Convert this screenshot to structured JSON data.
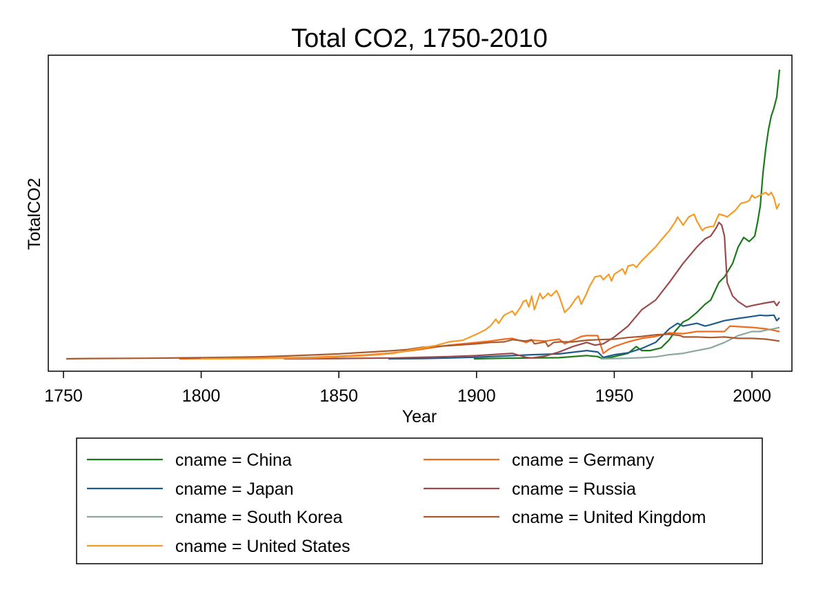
{
  "chart_data": {
    "type": "line",
    "title": "Total CO2, 1750-2010",
    "xlabel": "Year",
    "ylabel": "TotalCO2",
    "xlim": [
      1740,
      2015
    ],
    "ylim": [
      -50,
      1100
    ],
    "x_ticks": [
      1750,
      1800,
      1850,
      1900,
      1950,
      2000
    ],
    "y_ticks_shown": false,
    "grid": false,
    "legend_position": "bottom",
    "series": [
      {
        "name": "cname = China",
        "color": "#1a7a1a",
        "points": [
          [
            1899,
            0
          ],
          [
            1910,
            2
          ],
          [
            1920,
            3
          ],
          [
            1930,
            4
          ],
          [
            1940,
            12
          ],
          [
            1944,
            8
          ],
          [
            1946,
            0
          ],
          [
            1950,
            8
          ],
          [
            1955,
            20
          ],
          [
            1958,
            45
          ],
          [
            1960,
            30
          ],
          [
            1963,
            30
          ],
          [
            1967,
            40
          ],
          [
            1970,
            70
          ],
          [
            1972,
            100
          ],
          [
            1975,
            135
          ],
          [
            1977,
            145
          ],
          [
            1980,
            170
          ],
          [
            1983,
            200
          ],
          [
            1985,
            215
          ],
          [
            1988,
            280
          ],
          [
            1990,
            300
          ],
          [
            1993,
            350
          ],
          [
            1995,
            410
          ],
          [
            1997,
            445
          ],
          [
            1999,
            430
          ],
          [
            2001,
            450
          ],
          [
            2002,
            500
          ],
          [
            2003,
            560
          ],
          [
            2004,
            680
          ],
          [
            2005,
            770
          ],
          [
            2006,
            840
          ],
          [
            2007,
            890
          ],
          [
            2008,
            920
          ],
          [
            2009,
            960
          ],
          [
            2010,
            1060
          ]
        ]
      },
      {
        "name": "cname = Germany",
        "color": "#f26b1d",
        "points": [
          [
            1792,
            0
          ],
          [
            1800,
            1
          ],
          [
            1820,
            2
          ],
          [
            1840,
            5
          ],
          [
            1850,
            9
          ],
          [
            1860,
            14
          ],
          [
            1870,
            22
          ],
          [
            1880,
            35
          ],
          [
            1890,
            50
          ],
          [
            1900,
            60
          ],
          [
            1905,
            65
          ],
          [
            1910,
            72
          ],
          [
            1913,
            75
          ],
          [
            1918,
            60
          ],
          [
            1920,
            68
          ],
          [
            1925,
            65
          ],
          [
            1930,
            72
          ],
          [
            1932,
            55
          ],
          [
            1935,
            68
          ],
          [
            1938,
            82
          ],
          [
            1940,
            85
          ],
          [
            1944,
            85
          ],
          [
            1946,
            20
          ],
          [
            1948,
            35
          ],
          [
            1950,
            45
          ],
          [
            1955,
            62
          ],
          [
            1960,
            75
          ],
          [
            1965,
            82
          ],
          [
            1970,
            95
          ],
          [
            1975,
            92
          ],
          [
            1980,
            100
          ],
          [
            1985,
            100
          ],
          [
            1990,
            100
          ],
          [
            1992,
            120
          ],
          [
            1995,
            118
          ],
          [
            2000,
            115
          ],
          [
            2005,
            110
          ],
          [
            2010,
            100
          ]
        ]
      },
      {
        "name": "cname = Japan",
        "color": "#1f5a8c",
        "points": [
          [
            1868,
            0
          ],
          [
            1880,
            1
          ],
          [
            1890,
            3
          ],
          [
            1900,
            6
          ],
          [
            1910,
            10
          ],
          [
            1920,
            15
          ],
          [
            1930,
            18
          ],
          [
            1940,
            30
          ],
          [
            1944,
            25
          ],
          [
            1946,
            5
          ],
          [
            1950,
            15
          ],
          [
            1955,
            22
          ],
          [
            1960,
            38
          ],
          [
            1965,
            60
          ],
          [
            1970,
            110
          ],
          [
            1973,
            130
          ],
          [
            1975,
            120
          ],
          [
            1980,
            130
          ],
          [
            1983,
            120
          ],
          [
            1985,
            125
          ],
          [
            1990,
            140
          ],
          [
            1995,
            148
          ],
          [
            2000,
            155
          ],
          [
            2003,
            160
          ],
          [
            2005,
            158
          ],
          [
            2008,
            160
          ],
          [
            2009,
            140
          ],
          [
            2010,
            150
          ]
        ]
      },
      {
        "name": "cname = Russia",
        "color": "#9b4a4a",
        "points": [
          [
            1830,
            0
          ],
          [
            1850,
            1
          ],
          [
            1870,
            3
          ],
          [
            1890,
            8
          ],
          [
            1900,
            12
          ],
          [
            1910,
            18
          ],
          [
            1913,
            20
          ],
          [
            1918,
            5
          ],
          [
            1920,
            3
          ],
          [
            1925,
            10
          ],
          [
            1930,
            25
          ],
          [
            1935,
            45
          ],
          [
            1940,
            60
          ],
          [
            1943,
            50
          ],
          [
            1946,
            55
          ],
          [
            1950,
            80
          ],
          [
            1955,
            120
          ],
          [
            1960,
            180
          ],
          [
            1965,
            215
          ],
          [
            1970,
            280
          ],
          [
            1975,
            350
          ],
          [
            1980,
            410
          ],
          [
            1983,
            440
          ],
          [
            1985,
            450
          ],
          [
            1987,
            480
          ],
          [
            1988,
            500
          ],
          [
            1989,
            490
          ],
          [
            1990,
            450
          ],
          [
            1991,
            280
          ],
          [
            1993,
            230
          ],
          [
            1995,
            210
          ],
          [
            1998,
            190
          ],
          [
            2000,
            195
          ],
          [
            2005,
            205
          ],
          [
            2008,
            210
          ],
          [
            2009,
            195
          ],
          [
            2010,
            210
          ]
        ]
      },
      {
        "name": "cname = South Korea",
        "color": "#8aa89a",
        "points": [
          [
            1945,
            0
          ],
          [
            1950,
            1
          ],
          [
            1955,
            2
          ],
          [
            1960,
            4
          ],
          [
            1965,
            7
          ],
          [
            1970,
            15
          ],
          [
            1975,
            20
          ],
          [
            1980,
            30
          ],
          [
            1985,
            40
          ],
          [
            1990,
            60
          ],
          [
            1995,
            85
          ],
          [
            2000,
            100
          ],
          [
            2003,
            100
          ],
          [
            2005,
            105
          ],
          [
            2008,
            110
          ],
          [
            2010,
            115
          ]
        ]
      },
      {
        "name": "cname = United Kingdom",
        "color": "#a85a2e",
        "points": [
          [
            1751,
            0
          ],
          [
            1760,
            1
          ],
          [
            1780,
            2
          ],
          [
            1800,
            4
          ],
          [
            1820,
            7
          ],
          [
            1830,
            10
          ],
          [
            1840,
            14
          ],
          [
            1850,
            18
          ],
          [
            1860,
            24
          ],
          [
            1870,
            30
          ],
          [
            1875,
            34
          ],
          [
            1880,
            42
          ],
          [
            1890,
            48
          ],
          [
            1900,
            55
          ],
          [
            1905,
            60
          ],
          [
            1910,
            62
          ],
          [
            1913,
            70
          ],
          [
            1918,
            65
          ],
          [
            1920,
            70
          ],
          [
            1921,
            55
          ],
          [
            1925,
            62
          ],
          [
            1926,
            45
          ],
          [
            1928,
            60
          ],
          [
            1930,
            62
          ],
          [
            1935,
            62
          ],
          [
            1940,
            68
          ],
          [
            1944,
            70
          ],
          [
            1950,
            72
          ],
          [
            1955,
            78
          ],
          [
            1960,
            82
          ],
          [
            1965,
            88
          ],
          [
            1970,
            90
          ],
          [
            1974,
            85
          ],
          [
            1975,
            80
          ],
          [
            1980,
            80
          ],
          [
            1985,
            78
          ],
          [
            1990,
            80
          ],
          [
            1995,
            75
          ],
          [
            2000,
            75
          ],
          [
            2005,
            72
          ],
          [
            2010,
            65
          ]
        ]
      },
      {
        "name": "cname = United States",
        "color": "#f59a25",
        "points": [
          [
            1800,
            0
          ],
          [
            1820,
            1
          ],
          [
            1840,
            3
          ],
          [
            1850,
            7
          ],
          [
            1860,
            12
          ],
          [
            1870,
            20
          ],
          [
            1880,
            40
          ],
          [
            1885,
            48
          ],
          [
            1890,
            62
          ],
          [
            1895,
            68
          ],
          [
            1900,
            90
          ],
          [
            1903,
            105
          ],
          [
            1905,
            120
          ],
          [
            1907,
            145
          ],
          [
            1908,
            130
          ],
          [
            1910,
            160
          ],
          [
            1913,
            175
          ],
          [
            1914,
            160
          ],
          [
            1916,
            190
          ],
          [
            1917,
            210
          ],
          [
            1918,
            215
          ],
          [
            1919,
            190
          ],
          [
            1920,
            230
          ],
          [
            1921,
            180
          ],
          [
            1923,
            240
          ],
          [
            1924,
            220
          ],
          [
            1926,
            240
          ],
          [
            1927,
            230
          ],
          [
            1929,
            250
          ],
          [
            1930,
            230
          ],
          [
            1932,
            170
          ],
          [
            1934,
            190
          ],
          [
            1936,
            220
          ],
          [
            1937,
            230
          ],
          [
            1938,
            200
          ],
          [
            1940,
            240
          ],
          [
            1941,
            265
          ],
          [
            1943,
            300
          ],
          [
            1945,
            305
          ],
          [
            1946,
            290
          ],
          [
            1948,
            310
          ],
          [
            1949,
            285
          ],
          [
            1950,
            310
          ],
          [
            1953,
            330
          ],
          [
            1954,
            310
          ],
          [
            1955,
            340
          ],
          [
            1957,
            345
          ],
          [
            1958,
            335
          ],
          [
            1960,
            360
          ],
          [
            1963,
            390
          ],
          [
            1965,
            410
          ],
          [
            1967,
            435
          ],
          [
            1970,
            470
          ],
          [
            1972,
            500
          ],
          [
            1973,
            520
          ],
          [
            1974,
            505
          ],
          [
            1975,
            490
          ],
          [
            1977,
            520
          ],
          [
            1979,
            530
          ],
          [
            1980,
            505
          ],
          [
            1982,
            470
          ],
          [
            1983,
            480
          ],
          [
            1985,
            485
          ],
          [
            1986,
            485
          ],
          [
            1988,
            530
          ],
          [
            1990,
            525
          ],
          [
            1991,
            520
          ],
          [
            1994,
            545
          ],
          [
            1996,
            570
          ],
          [
            1998,
            575
          ],
          [
            1999,
            580
          ],
          [
            2000,
            600
          ],
          [
            2001,
            590
          ],
          [
            2003,
            600
          ],
          [
            2005,
            610
          ],
          [
            2006,
            600
          ],
          [
            2007,
            610
          ],
          [
            2008,
            590
          ],
          [
            2009,
            550
          ],
          [
            2010,
            570
          ]
        ]
      }
    ]
  }
}
